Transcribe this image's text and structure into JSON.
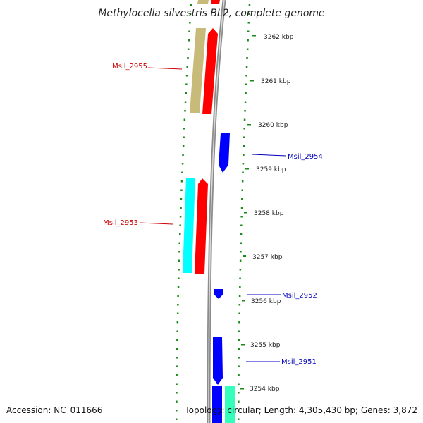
{
  "title": "Methylocella silvestris BL2, complete genome",
  "footer": {
    "accession": "Accession: NC_011666",
    "topology": "Topology: circular; Length: 4,305,430 bp; Genes: 3,872"
  },
  "colors": {
    "dots": "#1a8a1a",
    "backbone": "#8c8c8c",
    "label_forward": "#cc0000",
    "label_reverse": "#0000bb",
    "khaki": "#c8bb7a",
    "red": "#ff0000",
    "cyan": "#00ffff",
    "blue": "#0000ff",
    "aquamarine": "#33ffbb"
  },
  "tick_labels": [
    "3262 kbp",
    "3261 kbp",
    "3260 kbp",
    "3259 kbp",
    "3258 kbp",
    "3257 kbp",
    "3256 kbp",
    "3255 kbp",
    "3254 kbp"
  ],
  "gene_labels": [
    {
      "name": "Msil_2955",
      "strand": "forward"
    },
    {
      "name": "Msil_2954",
      "strand": "reverse"
    },
    {
      "name": "Msil_2953",
      "strand": "forward"
    },
    {
      "name": "Msil_2952",
      "strand": "reverse"
    },
    {
      "name": "Msil_2951",
      "strand": "reverse"
    }
  ]
}
